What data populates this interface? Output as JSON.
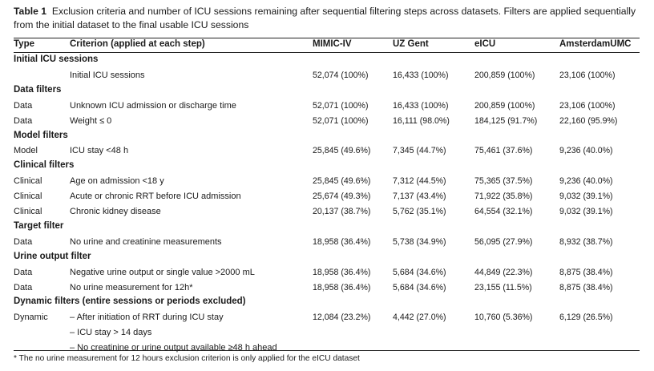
{
  "table": {
    "caption_label": "Table 1",
    "caption_text": "Exclusion criteria and number of ICU sessions remaining after sequential filtering steps across datasets. Filters are applied sequentially from the initial dataset to the final usable ICU sessions",
    "headers": [
      "Type",
      "Criterion (applied at each step)",
      "MIMIC-IV",
      "UZ Gent",
      "eICU",
      "AmsterdamUMC"
    ],
    "sections": [
      {
        "title": "Initial ICU sessions",
        "rows": [
          {
            "type": "",
            "criterion": "Initial ICU sessions",
            "values": [
              "52,074 (100%)",
              "16,433 (100%)",
              "200,859 (100%)",
              "23,106 (100%)"
            ]
          }
        ]
      },
      {
        "title": "Data filters",
        "rows": [
          {
            "type": "Data",
            "criterion": "Unknown ICU admission or discharge time",
            "values": [
              "52,071 (100%)",
              "16,433 (100%)",
              "200,859 (100%)",
              "23,106 (100%)"
            ]
          },
          {
            "type": "Data",
            "criterion": "Weight ≤ 0",
            "values": [
              "52,071 (100%)",
              "16,111 (98.0%)",
              "184,125 (91.7%)",
              "22,160 (95.9%)"
            ]
          }
        ]
      },
      {
        "title": "Model filters",
        "rows": [
          {
            "type": "Model",
            "criterion": "ICU stay <48 h",
            "values": [
              "25,845 (49.6%)",
              "7,345 (44.7%)",
              "75,461 (37.6%)",
              "9,236 (40.0%)"
            ]
          }
        ]
      },
      {
        "title": "Clinical filters",
        "rows": [
          {
            "type": "Clinical",
            "criterion": "Age on admission <18 y",
            "values": [
              "25,845 (49.6%)",
              "7,312 (44.5%)",
              "75,365 (37.5%)",
              "9,236 (40.0%)"
            ]
          },
          {
            "type": "Clinical",
            "criterion": "Acute or chronic RRT before ICU admission",
            "values": [
              "25,674 (49.3%)",
              "7,137 (43.4%)",
              "71,922 (35.8%)",
              "9,032 (39.1%)"
            ]
          },
          {
            "type": "Clinical",
            "criterion": "Chronic kidney disease",
            "values": [
              "20,137 (38.7%)",
              "5,762 (35.1%)",
              "64,554 (32.1%)",
              "9,032 (39.1%)"
            ]
          }
        ]
      },
      {
        "title": "Target filter",
        "rows": [
          {
            "type": "Data",
            "criterion": "No urine and creatinine measurements",
            "values": [
              "18,958 (36.4%)",
              "5,738 (34.9%)",
              "56,095 (27.9%)",
              "8,932 (38.7%)"
            ]
          }
        ]
      },
      {
        "title": "Urine output filter",
        "rows": [
          {
            "type": "Data",
            "criterion": "Negative urine output or single value >2000 mL",
            "values": [
              "18,958 (36.4%)",
              "5,684 (34.6%)",
              "44,849 (22.3%)",
              "8,875 (38.4%)"
            ]
          },
          {
            "type": "Data",
            "criterion": "No urine measurement for 12h*",
            "values": [
              "18,958 (36.4%)",
              "5,684 (34.6%)",
              "23,155 (11.5%)",
              "8,875 (38.4%)"
            ]
          }
        ]
      },
      {
        "title": "Dynamic filters (entire sessions or periods excluded)",
        "rows": [
          {
            "type": "Dynamic",
            "criterion": "– After initiation of RRT during ICU stay",
            "values": [
              "12,084 (23.2%)",
              "4,442 (27.0%)",
              "10,760 (5.36%)",
              "6,129 (26.5%)"
            ]
          },
          {
            "type": "",
            "criterion": "– ICU stay > 14 days",
            "values": [
              "",
              "",
              "",
              ""
            ]
          },
          {
            "type": "",
            "criterion": "– No creatinine or urine output available ≥48 h ahead",
            "values": [
              "",
              "",
              "",
              ""
            ]
          }
        ]
      }
    ],
    "footnote": "* The no urine measurement for 12 hours exclusion criterion is only applied for the eICU dataset"
  }
}
